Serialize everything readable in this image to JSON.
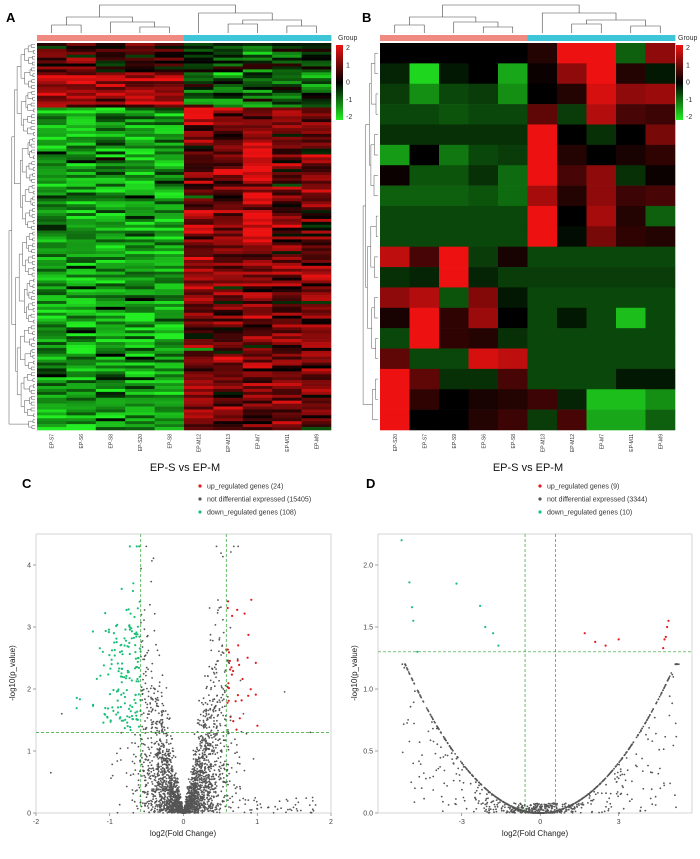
{
  "panels": {
    "A": {
      "letter": "A"
    },
    "B": {
      "letter": "B"
    },
    "C": {
      "letter": "C"
    },
    "D": {
      "letter": "D"
    }
  },
  "colors": {
    "group_ep_s": "#f08a80",
    "group_ep_m": "#3ec6d8",
    "heat_low": "#22ee22",
    "heat_mid": "#000000",
    "heat_high": "#ee1111",
    "up": "#e41a1c",
    "not_diff": "#555555",
    "down": "#1bbf7a",
    "threshold_line": "#2ca02c"
  },
  "chart_data": [
    {
      "id": "heatmap_A",
      "type": "heatmap",
      "panel": "A",
      "xlabel": "EP-S vs EP-M",
      "columns": [
        "EP-S7",
        "EP-S6",
        "EP-S8",
        "EP-S20",
        "EP-S8",
        "EP-M12",
        "EP-M13",
        "EP-M7",
        "EP-M11",
        "EP-M9"
      ],
      "column_groups": [
        "EP-S",
        "EP-S",
        "EP-S",
        "EP-S",
        "EP-S",
        "EP-M",
        "EP-M",
        "EP-M",
        "EP-M",
        "EP-M"
      ],
      "n_rows": 132,
      "legend_title": "Group",
      "color_scale_ticks": [
        "2",
        "1",
        "0",
        "-1",
        "-2"
      ],
      "color_range": [
        -2,
        2
      ]
    },
    {
      "id": "heatmap_B",
      "type": "heatmap",
      "panel": "B",
      "xlabel": "EP-S vs EP-M",
      "columns": [
        "EP-S20",
        "EP-S7",
        "EP-S9",
        "EP-S6",
        "EP-S8",
        "EP-M13",
        "EP-M12",
        "EP-M7",
        "EP-M11",
        "EP-M9"
      ],
      "column_groups": [
        "EP-S",
        "EP-S",
        "EP-S",
        "EP-S",
        "EP-S",
        "EP-M",
        "EP-M",
        "EP-M",
        "EP-M",
        "EP-M"
      ],
      "n_rows": 19,
      "legend_title": "Group",
      "color_scale_ticks": [
        "2",
        "1",
        "0",
        "-1",
        "-2"
      ],
      "color_range": [
        -2,
        2
      ],
      "values": [
        [
          0,
          0,
          0,
          0,
          0,
          0.3,
          2,
          2.2,
          -0.8,
          1.2
        ],
        [
          -0.3,
          -1.8,
          -0.2,
          0,
          -1.4,
          0.1,
          1.2,
          2,
          0.3,
          -0.2
        ],
        [
          -0.5,
          -1.2,
          -0.6,
          -0.5,
          -1.2,
          0,
          0.3,
          1.8,
          1.2,
          1.3
        ],
        [
          -0.6,
          -0.6,
          -0.7,
          -0.6,
          -0.6,
          0.8,
          -0.5,
          1.5,
          0.6,
          0.5
        ],
        [
          -0.4,
          -0.4,
          -0.4,
          -0.4,
          -0.4,
          2.2,
          0,
          -0.4,
          0,
          1
        ],
        [
          -1.3,
          0,
          -1,
          -0.6,
          -0.5,
          2.5,
          0.3,
          0,
          0.2,
          0.4
        ],
        [
          0.1,
          -0.7,
          -0.7,
          -0.4,
          -0.9,
          2.4,
          0.6,
          1.2,
          -0.4,
          0.1
        ],
        [
          -0.8,
          -0.8,
          -0.8,
          -0.7,
          -0.9,
          1.4,
          0.3,
          1.2,
          0.5,
          0.6
        ],
        [
          -0.6,
          -0.6,
          -0.6,
          -0.6,
          -0.6,
          2,
          0,
          1.4,
          0.3,
          -0.8
        ],
        [
          -0.6,
          -0.6,
          -0.6,
          -0.6,
          -0.6,
          2.2,
          -0.1,
          1,
          0.4,
          0.3
        ],
        [
          1.6,
          0.6,
          2,
          -0.5,
          0.2,
          -0.6,
          -0.6,
          -0.6,
          -0.6,
          -0.6
        ],
        [
          -0.4,
          -0.3,
          2.4,
          -0.3,
          -0.5,
          -0.5,
          -0.5,
          -0.5,
          -0.5,
          -0.5
        ],
        [
          1.2,
          1.5,
          -0.7,
          1.1,
          -0.2,
          -0.6,
          -0.6,
          -0.6,
          -0.6,
          -0.6
        ],
        [
          0.2,
          2,
          0.4,
          1.3,
          0,
          -0.6,
          -0.2,
          -0.6,
          -1.6,
          -0.6
        ],
        [
          -0.6,
          2.6,
          0.4,
          0.3,
          -0.4,
          -0.6,
          -0.6,
          -0.6,
          -0.6,
          -0.6
        ],
        [
          0.8,
          -0.6,
          -0.6,
          1.8,
          1.6,
          -0.6,
          -0.6,
          -0.6,
          -0.6,
          -0.6
        ],
        [
          2.2,
          0.8,
          -0.4,
          -0.4,
          0.6,
          -0.6,
          -0.6,
          -0.6,
          -0.2,
          -0.2
        ],
        [
          2.4,
          0.4,
          0,
          0.2,
          0.3,
          0.5,
          -0.3,
          -1.6,
          -1.6,
          -1.2
        ],
        [
          2.4,
          0,
          0,
          0.3,
          0.5,
          -0.5,
          0.6,
          -1.4,
          -1.4,
          -0.8
        ]
      ]
    },
    {
      "id": "volcano_C",
      "type": "scatter",
      "panel": "C",
      "xlabel": "log2(Fold Change)",
      "ylabel": "-log10(p_value)",
      "xlim": [
        -2,
        2
      ],
      "ylim": [
        0,
        4.5
      ],
      "xticks": [
        "-2",
        "-1",
        "0",
        "1",
        "2"
      ],
      "yticks": [
        "0",
        "1",
        "2",
        "3",
        "4"
      ],
      "fc_thresholds": [
        -0.58,
        0.58
      ],
      "p_threshold": 1.3,
      "legend": [
        {
          "key": "up",
          "label": "up_regulated genes (24)",
          "count": 24
        },
        {
          "key": "not_diff",
          "label": "not differential expressed (15405)",
          "count": 15405
        },
        {
          "key": "down",
          "label": "down_regulated genes (108)",
          "count": 108
        }
      ]
    },
    {
      "id": "volcano_D",
      "type": "scatter",
      "panel": "D",
      "xlabel": "log2(Fold Change)",
      "ylabel": "-log10(p_value)",
      "xlim": [
        -6.2,
        5.8
      ],
      "ylim": [
        0,
        2.25
      ],
      "xticks": [
        "-3",
        "0",
        "3"
      ],
      "yticks": [
        "0.0",
        "0.5",
        "1.0",
        "1.5",
        "2.0"
      ],
      "fc_thresholds": [
        -0.58,
        0.58
      ],
      "p_threshold": 1.3,
      "legend": [
        {
          "key": "up",
          "label": "up_regulated genes (9)",
          "count": 9
        },
        {
          "key": "not_diff",
          "label": "not differential expressed (3344)",
          "count": 3344
        },
        {
          "key": "down",
          "label": "down_regulated genes (10)",
          "count": 10
        }
      ],
      "up_points": [
        [
          4.9,
          1.55
        ],
        [
          4.85,
          1.5
        ],
        [
          4.8,
          1.42
        ],
        [
          4.75,
          1.4
        ],
        [
          4.7,
          1.33
        ],
        [
          1.7,
          1.45
        ],
        [
          2.1,
          1.38
        ],
        [
          2.5,
          1.35
        ],
        [
          3.0,
          1.4
        ]
      ],
      "down_points": [
        [
          -5.3,
          2.2
        ],
        [
          -5.0,
          1.86
        ],
        [
          -4.9,
          1.66
        ],
        [
          -4.85,
          1.55
        ],
        [
          -4.7,
          1.3
        ],
        [
          -3.2,
          1.85
        ],
        [
          -2.3,
          1.67
        ],
        [
          -2.1,
          1.5
        ],
        [
          -1.8,
          1.45
        ],
        [
          -1.6,
          1.35
        ]
      ]
    }
  ]
}
